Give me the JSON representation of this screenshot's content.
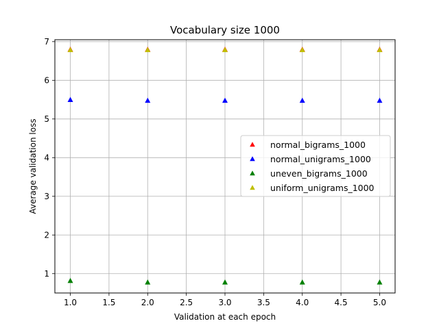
{
  "chart_data": {
    "type": "scatter",
    "title": "Vocabulary size 1000",
    "xlabel": "Validation at each epoch",
    "ylabel": "Average validation loss",
    "xlim": [
      0.8,
      5.2
    ],
    "ylim": [
      0.5,
      7.05
    ],
    "xticks": [
      1.0,
      1.5,
      2.0,
      2.5,
      3.0,
      3.5,
      4.0,
      4.5,
      5.0
    ],
    "xtick_labels": [
      "1.0",
      "1.5",
      "2.0",
      "2.5",
      "3.0",
      "3.5",
      "4.0",
      "4.5",
      "5.0"
    ],
    "yticks": [
      1,
      2,
      3,
      4,
      5,
      6,
      7
    ],
    "ytick_labels": [
      "1",
      "2",
      "3",
      "4",
      "5",
      "6",
      "7"
    ],
    "grid": true,
    "legend_position": "center-right",
    "marker": "triangle-up",
    "series": [
      {
        "name": "normal_bigrams_1000",
        "color": "#ff0000",
        "x": [
          1,
          2,
          3,
          4,
          5
        ],
        "y": [
          6.8,
          6.8,
          6.8,
          6.8,
          6.8
        ]
      },
      {
        "name": "normal_unigrams_1000",
        "color": "#0000ff",
        "x": [
          1,
          2,
          3,
          4,
          5
        ],
        "y": [
          5.5,
          5.48,
          5.48,
          5.48,
          5.48
        ]
      },
      {
        "name": "uneven_bigrams_1000",
        "color": "#008000",
        "x": [
          1,
          2,
          3,
          4,
          5
        ],
        "y": [
          0.82,
          0.78,
          0.78,
          0.78,
          0.78
        ]
      },
      {
        "name": "uniform_unigrams_1000",
        "color": "#bfbf00",
        "x": [
          1,
          2,
          3,
          4,
          5
        ],
        "y": [
          6.79,
          6.79,
          6.79,
          6.79,
          6.79
        ]
      }
    ]
  }
}
